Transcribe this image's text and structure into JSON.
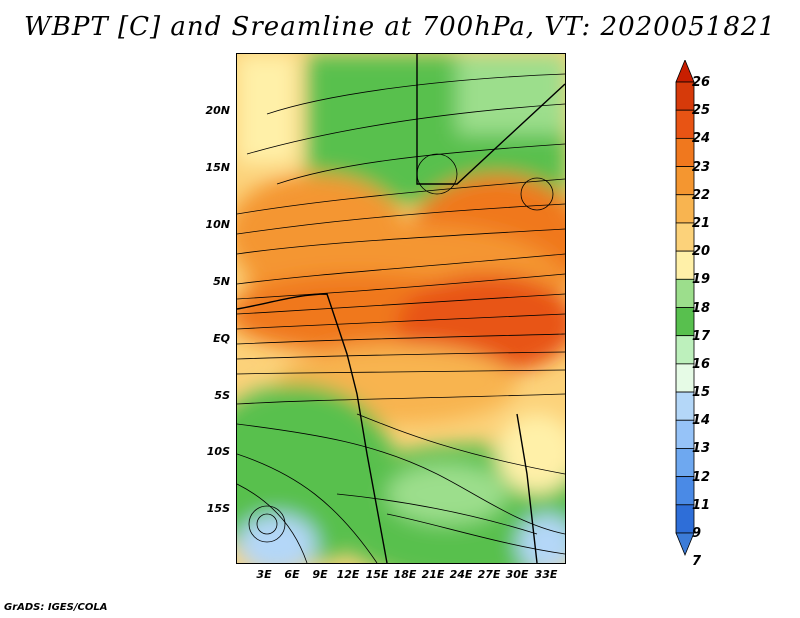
{
  "title": "WBPT [C] and Sreamline at 700hPa, VT: 2020051821",
  "credit": "GrADS: IGES/COLA",
  "lat_labels": [
    "20N",
    "15N",
    "10N",
    "5N",
    "EQ",
    "5S",
    "10S",
    "15S"
  ],
  "lon_labels": [
    "3E",
    "6E",
    "9E",
    "12E",
    "15E",
    "18E",
    "21E",
    "24E",
    "27E",
    "30E",
    "33E"
  ],
  "colorbar": {
    "labels": [
      "26",
      "25",
      "24",
      "23",
      "22",
      "21",
      "20",
      "19",
      "18",
      "17",
      "16",
      "15",
      "14",
      "13",
      "12",
      "11",
      "9",
      "7"
    ],
    "colors": [
      "#c81e00",
      "#d63a0a",
      "#e85414",
      "#f0781e",
      "#f49630",
      "#f8b450",
      "#fcd27a",
      "#fff0a8",
      "#9cde8c",
      "#58c04e",
      "#bdf0bc",
      "#e6fbe6",
      "#b4d7f8",
      "#96c3f8",
      "#6ea8f0",
      "#4a8ae6",
      "#2e6ed8",
      "#3c7cd8"
    ]
  }
}
